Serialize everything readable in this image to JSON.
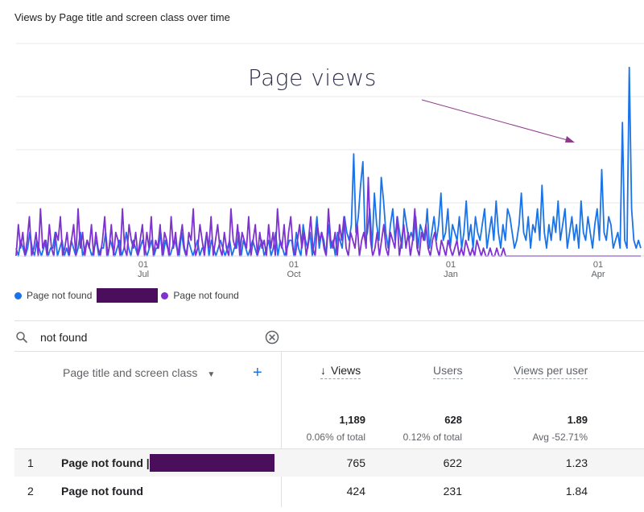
{
  "card": {
    "title": "Views by Page title and screen class over time"
  },
  "annotation": {
    "text": "Page views"
  },
  "chart_data": {
    "type": "line",
    "title": "Views by Page title and screen class over time",
    "x_ticks": [
      {
        "day": "01",
        "month": "Jul"
      },
      {
        "day": "01",
        "month": "Oct"
      },
      {
        "day": "01",
        "month": "Jan"
      },
      {
        "day": "01",
        "month": "Apr"
      }
    ],
    "grid": true,
    "legend_position": "bottom-left",
    "series": [
      {
        "name": "Page not found |",
        "color": "#1a73e8",
        "values": [
          1,
          0,
          2,
          1,
          0,
          1,
          3,
          1,
          0,
          2,
          1,
          0,
          1,
          2,
          0,
          1,
          1,
          3,
          0,
          1,
          2,
          0,
          1,
          0,
          2,
          1,
          0,
          1,
          3,
          0,
          1,
          2,
          1,
          0,
          1,
          2,
          0,
          1,
          1,
          3,
          0,
          2,
          1,
          0,
          1,
          2,
          0,
          1,
          3,
          1,
          0,
          2,
          1,
          0,
          1,
          2,
          1,
          0,
          1,
          2,
          0,
          1,
          1,
          3,
          0,
          2,
          1,
          0,
          1,
          2,
          1,
          0,
          3,
          1,
          0,
          2,
          1,
          0,
          1,
          2,
          0,
          1,
          1,
          3,
          0,
          2,
          1,
          0,
          1,
          2,
          1,
          0,
          1,
          2,
          0,
          1,
          1,
          3,
          0,
          2,
          1,
          0,
          1,
          2,
          1,
          0,
          1,
          2,
          0,
          1,
          2,
          0,
          1,
          3,
          0,
          2,
          1,
          0,
          1,
          2,
          2,
          0,
          3,
          1,
          0,
          4,
          2,
          1,
          3,
          0,
          2,
          5,
          1,
          3,
          2,
          0,
          4,
          1,
          2,
          0,
          3,
          2,
          1,
          5,
          3,
          2,
          4,
          13,
          3,
          5,
          9,
          12,
          2,
          3,
          6,
          1,
          8,
          4,
          2,
          10,
          7,
          3,
          1,
          4,
          6,
          2,
          5,
          3,
          1,
          6,
          4,
          2,
          3,
          2,
          5,
          1,
          4,
          3,
          2,
          6,
          1,
          3,
          5,
          2,
          4,
          8,
          2,
          3,
          6,
          1,
          4,
          3,
          2,
          5,
          1,
          3,
          7,
          2,
          4,
          1,
          5,
          3,
          2,
          4,
          6,
          1,
          3,
          5,
          2,
          7,
          3,
          1,
          4,
          2,
          6,
          5,
          3,
          1,
          2,
          4,
          8,
          3,
          2,
          5,
          1,
          4,
          3,
          6,
          2,
          9,
          3,
          1,
          4,
          2,
          5,
          3,
          7,
          2,
          4,
          6,
          1,
          3,
          5,
          2,
          4,
          1,
          7,
          3,
          2,
          5,
          3,
          1,
          4,
          6,
          2,
          11,
          3,
          2,
          5,
          4,
          1,
          2,
          3,
          1,
          17,
          2,
          1,
          24,
          6,
          2,
          1,
          2,
          1
        ]
      },
      {
        "name": "Page not found",
        "color": "#7e32cf",
        "values": [
          0,
          4,
          1,
          3,
          0,
          2,
          5,
          0,
          1,
          3,
          0,
          6,
          1,
          2,
          0,
          4,
          1,
          0,
          3,
          2,
          5,
          0,
          1,
          3,
          0,
          2,
          4,
          0,
          6,
          1,
          3,
          0,
          2,
          1,
          4,
          0,
          3,
          1,
          0,
          2,
          5,
          0,
          1,
          4,
          0,
          3,
          2,
          0,
          6,
          1,
          0,
          4,
          2,
          1,
          3,
          0,
          2,
          4,
          0,
          3,
          1,
          5,
          0,
          2,
          1,
          4,
          0,
          3,
          2,
          0,
          5,
          1,
          3,
          0,
          2,
          4,
          1,
          0,
          3,
          2,
          6,
          0,
          1,
          4,
          2,
          0,
          3,
          1,
          5,
          0,
          2,
          4,
          1,
          0,
          3,
          1,
          0,
          6,
          2,
          1,
          4,
          0,
          3,
          2,
          1,
          5,
          0,
          2,
          4,
          0,
          3,
          1,
          2,
          0,
          4,
          1,
          3,
          0,
          6,
          2,
          1,
          4,
          0,
          3,
          5,
          1,
          0,
          2,
          4,
          1,
          3,
          0,
          2,
          5,
          1,
          0,
          4,
          2,
          3,
          1,
          0,
          6,
          2,
          1,
          3,
          0,
          4,
          2,
          5,
          1,
          0,
          3,
          2,
          1,
          4,
          0,
          2,
          3,
          1,
          10,
          2,
          0,
          1,
          3,
          0,
          2,
          4,
          1,
          0,
          3,
          2,
          1,
          5,
          0,
          2,
          4,
          1,
          3,
          0,
          2,
          6,
          1,
          0,
          3,
          2,
          4,
          1,
          0,
          2,
          3,
          1,
          0,
          2,
          1,
          0,
          2,
          1,
          0,
          1,
          2,
          0,
          1,
          0,
          2,
          1,
          0,
          1,
          0,
          2,
          1,
          0,
          1,
          0,
          0,
          1,
          0,
          0,
          1,
          0,
          0,
          1,
          0,
          0,
          0,
          0,
          0,
          0,
          0,
          0,
          0,
          0,
          0,
          0,
          0,
          0,
          0,
          0,
          0,
          0,
          0,
          0,
          0,
          0,
          0,
          0,
          0,
          0,
          0,
          0,
          0,
          0,
          0,
          0,
          0,
          0,
          0,
          0,
          0,
          0,
          0,
          0,
          0,
          0,
          0,
          0,
          0,
          0,
          0,
          0,
          0,
          0,
          0,
          0,
          0,
          0,
          0,
          0,
          0,
          0,
          0,
          0,
          0,
          0
        ]
      }
    ]
  },
  "legend": [
    {
      "label": "Page not found",
      "color": "#1a73e8",
      "redacted": true
    },
    {
      "label": "Page not found",
      "color": "#7e32cf",
      "redacted": false
    }
  ],
  "search": {
    "value": "not found",
    "icon": "search-icon",
    "clear_icon": "clear-icon"
  },
  "table": {
    "dimension_header": "Page title and screen class",
    "columns": [
      {
        "label": "Views",
        "sorted": "desc"
      },
      {
        "label": "Users"
      },
      {
        "label": "Views per user"
      }
    ],
    "totals": {
      "views": "1,189",
      "views_sub": "0.06% of total",
      "users": "628",
      "users_sub": "0.12% of total",
      "vpu": "1.89",
      "vpu_sub": "Avg -52.71%"
    },
    "rows": [
      {
        "index": "1",
        "title": "Page not found |",
        "redacted": true,
        "views": "765",
        "users": "622",
        "vpu": "1.23"
      },
      {
        "index": "2",
        "title": "Page not found",
        "redacted": false,
        "views": "424",
        "users": "231",
        "vpu": "1.84"
      }
    ]
  }
}
